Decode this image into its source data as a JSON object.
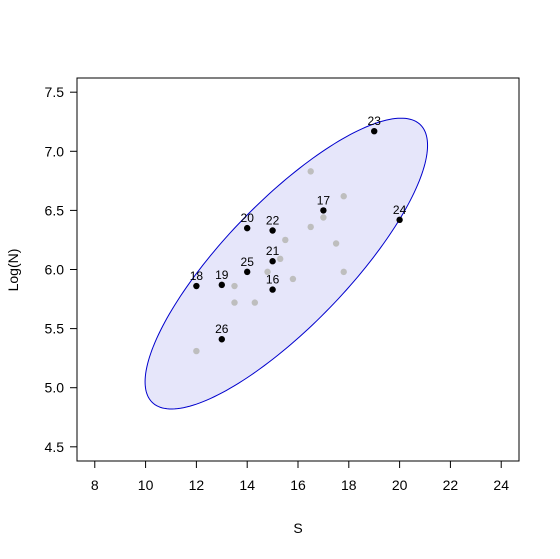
{
  "chart_data": {
    "type": "scatter",
    "xlabel": "S",
    "ylabel": "Log(N)",
    "xlim": [
      7.3,
      24.7
    ],
    "ylim": [
      4.38,
      7.62
    ],
    "x_ticks": [
      8,
      10,
      12,
      14,
      16,
      18,
      20,
      22,
      24
    ],
    "y_ticks": [
      4.5,
      5.0,
      5.5,
      6.0,
      6.5,
      7.0,
      7.5
    ],
    "colors": {
      "labeled_point": "#000000",
      "other_point": "#bebebe",
      "ellipse_fill": "#e6e6fa",
      "ellipse_stroke": "#0000cd"
    },
    "ellipse": {
      "center": [
        15.54,
        6.05
      ],
      "x_extreme_points": [
        [
          10.0,
          5.02
        ],
        [
          21.1,
          7.05
        ]
      ],
      "y_extreme_points": [
        [
          11.05,
          4.82
        ],
        [
          20.05,
          7.28
        ]
      ]
    },
    "labeled_points": [
      {
        "label": "23",
        "x": 19.0,
        "y": 7.17
      },
      {
        "label": "17",
        "x": 17.0,
        "y": 6.5
      },
      {
        "label": "24",
        "x": 20.0,
        "y": 6.42
      },
      {
        "label": "20",
        "x": 14.0,
        "y": 6.35
      },
      {
        "label": "22",
        "x": 15.0,
        "y": 6.33
      },
      {
        "label": "21",
        "x": 15.0,
        "y": 6.07
      },
      {
        "label": "25",
        "x": 14.0,
        "y": 5.98
      },
      {
        "label": "19",
        "x": 13.0,
        "y": 5.87
      },
      {
        "label": "18",
        "x": 12.0,
        "y": 5.86
      },
      {
        "label": "16",
        "x": 15.0,
        "y": 5.83
      },
      {
        "label": "26",
        "x": 13.0,
        "y": 5.41
      }
    ],
    "other_points": [
      {
        "x": 16.5,
        "y": 6.83
      },
      {
        "x": 17.8,
        "y": 6.62
      },
      {
        "x": 17.0,
        "y": 6.44
      },
      {
        "x": 16.5,
        "y": 6.36
      },
      {
        "x": 15.5,
        "y": 6.25
      },
      {
        "x": 17.5,
        "y": 6.22
      },
      {
        "x": 15.3,
        "y": 6.09
      },
      {
        "x": 14.8,
        "y": 5.98
      },
      {
        "x": 17.8,
        "y": 5.98
      },
      {
        "x": 15.8,
        "y": 5.92
      },
      {
        "x": 13.5,
        "y": 5.86
      },
      {
        "x": 13.5,
        "y": 5.72
      },
      {
        "x": 14.3,
        "y": 5.72
      },
      {
        "x": 12.0,
        "y": 5.31
      }
    ]
  }
}
